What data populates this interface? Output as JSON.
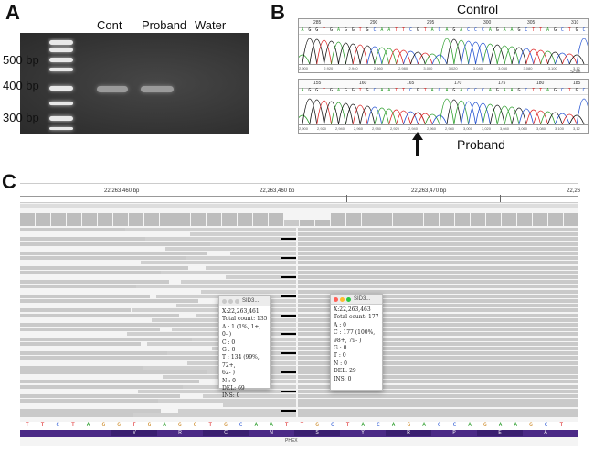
{
  "panelA": {
    "letter": "A",
    "lanes": [
      "Cont",
      "Proband",
      "Water"
    ],
    "ladder": [
      "500 bp",
      "400 bp",
      "300 bp"
    ]
  },
  "panelB": {
    "letter": "B",
    "control_label": "Control",
    "proband_label": "Proband",
    "control_axis": [
      "2,900",
      "2,920",
      "2,940",
      "2,960",
      "2,980",
      "3,000",
      "3,020",
      "3,040",
      "3,060",
      "3,080",
      "3,100",
      "3,12"
    ],
    "proband_axis": [
      "2,900",
      "2,920",
      "2,940",
      "2,960",
      "2,980",
      "2,920",
      "2,940",
      "2,960",
      "2,980",
      "3,000",
      "3,020",
      "3,040",
      "3,060",
      "3,080",
      "3,100",
      "3,12"
    ],
    "control_ruler": [
      "285",
      "290",
      "295",
      "300",
      "305",
      "310"
    ],
    "proband_ruler": [
      "155",
      "160",
      "165",
      "170",
      "175",
      "180",
      "185"
    ],
    "axis_unit": "Scan"
  },
  "panelC": {
    "letter": "C",
    "ticks": [
      "22,263,460 bp",
      "22,263,460 bp",
      "22,263,470 bp",
      "22,26"
    ],
    "popup1": {
      "title": "SID3...",
      "lines": [
        "X:22,263,461",
        "Total count: 135",
        "A : 1 (1%, 1+, 0- )",
        "C : 0",
        "G : 0",
        "T : 134 (99%, 72+,",
        "62- )",
        "N : 0",
        "DEL: 69",
        "INS: 0"
      ]
    },
    "popup2": {
      "title": "SID3...",
      "lines": [
        "X:22,263,463",
        "Total count: 177",
        "A : 0",
        "C : 177 (100%,",
        "98+, 79- )",
        "G : 0",
        "T : 0",
        "N : 0",
        "DEL: 29",
        "INS: 0"
      ]
    },
    "sequence": [
      "T",
      "T",
      "C",
      "T",
      "A",
      "G",
      "G",
      "T",
      "G",
      "A",
      "G",
      "G",
      "T",
      "G",
      "C",
      "A",
      "A",
      "T",
      "T",
      "G",
      "C",
      "T",
      "A",
      "C",
      "A",
      "G",
      "A",
      "C",
      "C",
      "A",
      "G",
      "A",
      "A",
      "G",
      "C",
      "T"
    ],
    "amino_acids": [
      "V",
      "R",
      "C",
      "N",
      "S",
      "Y",
      "R",
      "P",
      "E",
      "A"
    ],
    "gene": "PHEX"
  }
}
